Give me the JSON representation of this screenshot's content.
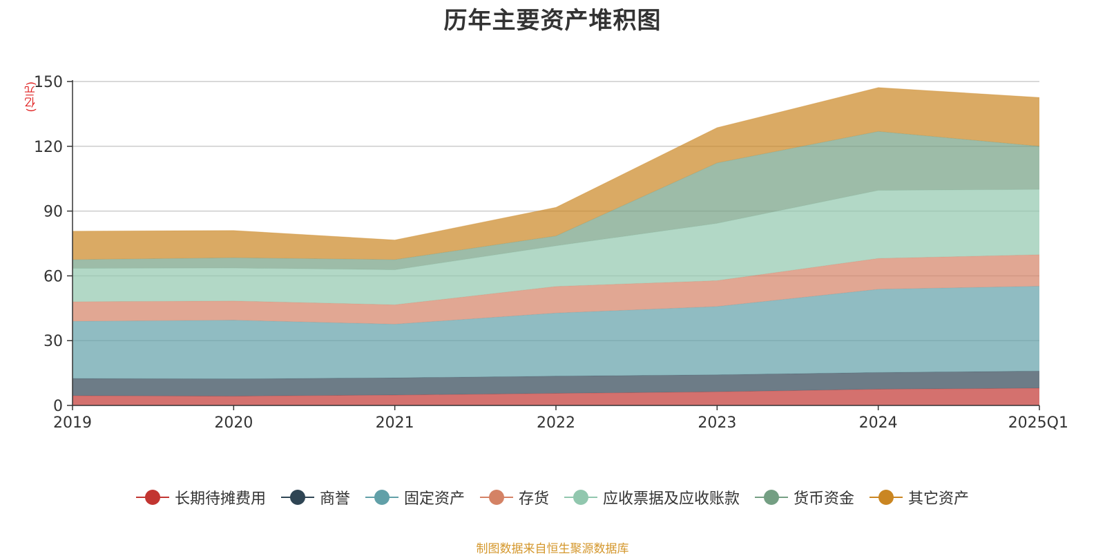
{
  "chart_data": {
    "type": "area",
    "title": "历年主要资产堆积图",
    "unit_label": "(亿元)",
    "categories": [
      "2019",
      "2020",
      "2021",
      "2022",
      "2023",
      "2024",
      "2025Q1"
    ],
    "ylim": [
      0,
      150
    ],
    "yticks": [
      "0",
      "30",
      "60",
      "90",
      "120",
      "150"
    ],
    "grid": true,
    "stacked": true,
    "legend_position": "bottom",
    "series": [
      {
        "name": "长期待摊费用",
        "color": "#c23531",
        "values": [
          4.5,
          4.3,
          4.8,
          5.6,
          6.3,
          7.5,
          8.0
        ]
      },
      {
        "name": "商誉",
        "color": "#2f4554",
        "values": [
          8.0,
          8.0,
          8.0,
          8.0,
          7.9,
          7.8,
          7.9
        ]
      },
      {
        "name": "固定资产",
        "color": "#61a0a8",
        "values": [
          26.5,
          27.2,
          24.8,
          29.2,
          31.6,
          38.5,
          39.3
        ]
      },
      {
        "name": "存货",
        "color": "#d48265",
        "values": [
          9.0,
          8.9,
          9.0,
          12.3,
          12.0,
          14.3,
          14.6
        ]
      },
      {
        "name": "应收票据及应收账款",
        "color": "#91c7ae",
        "values": [
          15.5,
          15.2,
          16.2,
          18.8,
          26.5,
          31.5,
          30.2
        ]
      },
      {
        "name": "货币资金",
        "color": "#749f83",
        "values": [
          4.0,
          4.8,
          4.7,
          4.6,
          28.0,
          27.3,
          20.0
        ]
      },
      {
        "name": "其它资产",
        "color": "#ca8622",
        "values": [
          13.2,
          12.6,
          9.1,
          13.2,
          16.3,
          20.3,
          22.6
        ]
      }
    ]
  },
  "source_note": "制图数据来自恒生聚源数据库"
}
